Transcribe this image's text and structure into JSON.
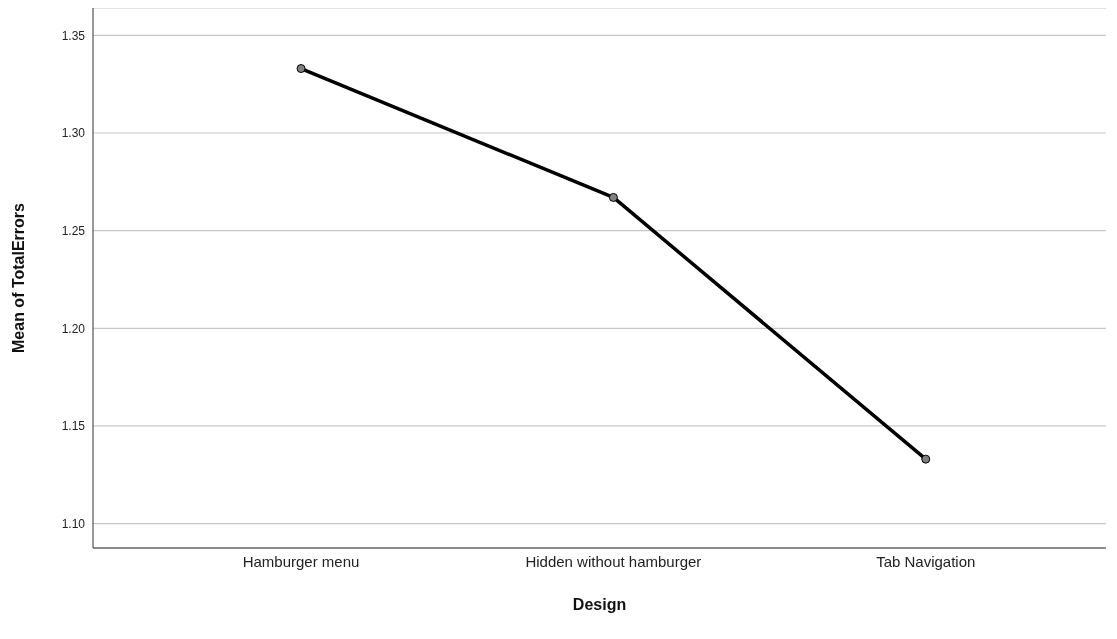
{
  "chart_data": {
    "type": "line",
    "xlabel": "Design",
    "ylabel": "Mean of TotalErrors",
    "categories": [
      "Hamburger menu",
      "Hidden without hamburger",
      "Tab Navigation"
    ],
    "series": [
      {
        "color": "#000000",
        "values": [
          1.333,
          1.267,
          1.133
        ]
      }
    ],
    "ylim": [
      1.0875,
      1.364
    ],
    "yticks": [
      {
        "value": 1.1,
        "label": "1.10"
      },
      {
        "value": 1.15,
        "label": "1.15"
      },
      {
        "value": 1.2,
        "label": "1.20"
      },
      {
        "value": 1.25,
        "label": "1.25"
      },
      {
        "value": 1.3,
        "label": "1.30"
      },
      {
        "value": 1.35,
        "label": "1.35"
      }
    ],
    "grid": "y",
    "marker": "circle",
    "line_style": "solid"
  }
}
